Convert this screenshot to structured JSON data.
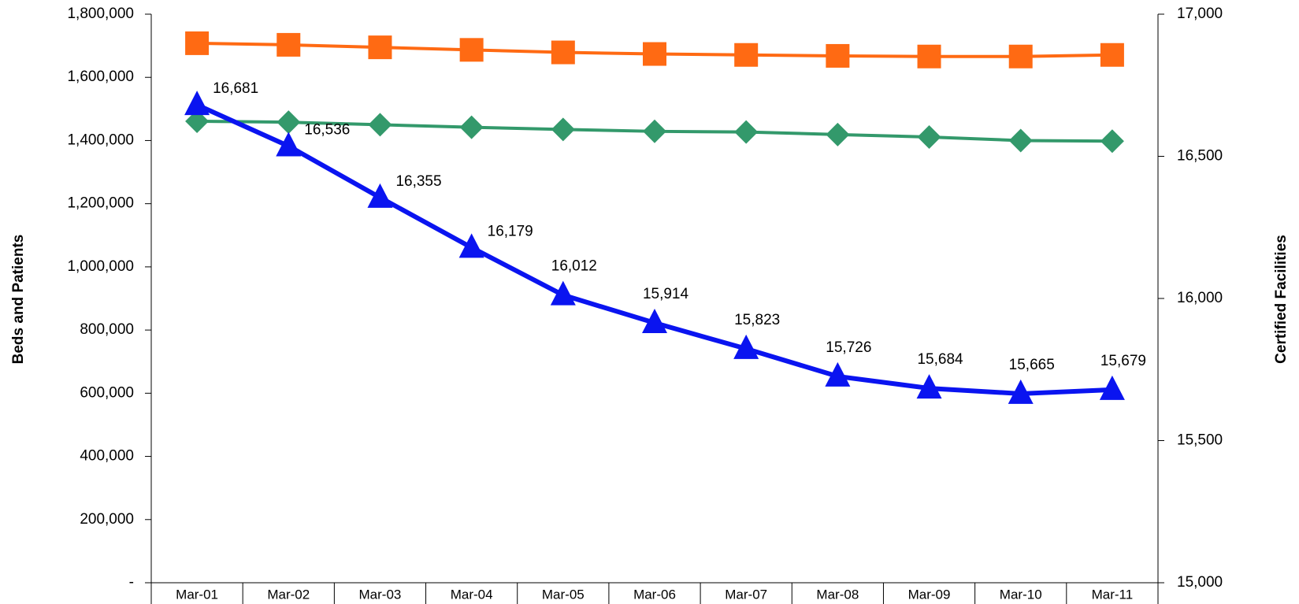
{
  "chart_data": {
    "type": "line",
    "categories": [
      "Mar-01",
      "Mar-02",
      "Mar-03",
      "Mar-04",
      "Mar-05",
      "Mar-06",
      "Mar-07",
      "Mar-08",
      "Mar-09",
      "Mar-10",
      "Mar-11"
    ],
    "y_label": "Beds and Patients",
    "y2_label": "Certified Facilities",
    "ylim": [
      0,
      1800000
    ],
    "yticks": [
      {
        "value": 0,
        "label": "-"
      },
      {
        "value": 200000,
        "label": "200,000"
      },
      {
        "value": 400000,
        "label": "400,000"
      },
      {
        "value": 600000,
        "label": "600,000"
      },
      {
        "value": 800000,
        "label": "800,000"
      },
      {
        "value": 1000000,
        "label": "1,000,000"
      },
      {
        "value": 1200000,
        "label": "1,200,000"
      },
      {
        "value": 1400000,
        "label": "1,400,000"
      },
      {
        "value": 1600000,
        "label": "1,600,000"
      },
      {
        "value": 1800000,
        "label": "1,800,000"
      }
    ],
    "y2lim": [
      15000,
      17000
    ],
    "y2ticks": [
      {
        "value": 15000,
        "label": "15,000"
      },
      {
        "value": 15500,
        "label": "15,500"
      },
      {
        "value": 16000,
        "label": "16,000"
      },
      {
        "value": 16500,
        "label": "16,500"
      },
      {
        "value": 17000,
        "label": "17,000"
      }
    ],
    "grid": false,
    "series": [
      {
        "color": "#ff6a13",
        "marker": "square",
        "values": [
          1708000,
          1703000,
          1695000,
          1687000,
          1679000,
          1674000,
          1671000,
          1668000,
          1666000,
          1666000,
          1671000
        ]
      },
      {
        "color": "#33996b",
        "marker": "diamond",
        "values": [
          1461000,
          1458000,
          1450000,
          1442000,
          1435000,
          1429000,
          1427000,
          1419000,
          1411000,
          1400000,
          1398000
        ]
      },
      {
        "color": "#0a14f0",
        "marker": "triangle",
        "axis": "y2",
        "values": [
          16681,
          16536,
          16355,
          16179,
          16012,
          15914,
          15823,
          15726,
          15684,
          15665,
          15679
        ],
        "value_labels": [
          "16,681",
          "16,536",
          "16,355",
          "16,179",
          "16,012",
          "15,914",
          "15,823",
          "15,726",
          "15,684",
          "15,665",
          "15,679"
        ]
      }
    ]
  }
}
